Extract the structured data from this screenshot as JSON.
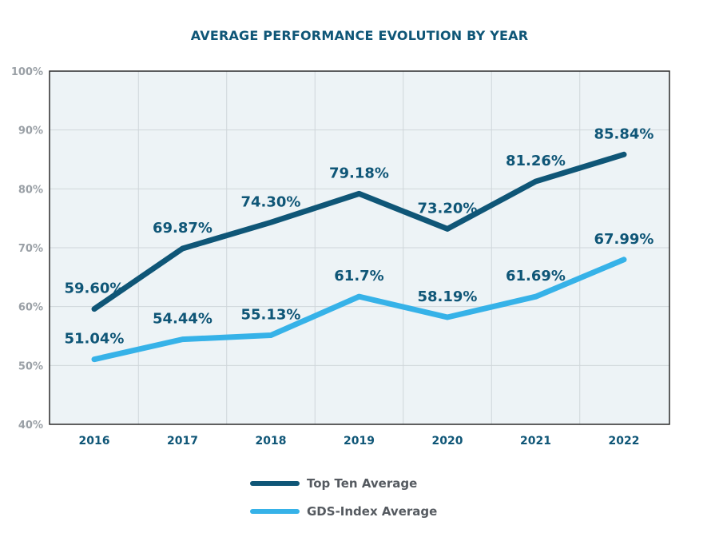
{
  "chart_data": {
    "type": "line",
    "title": "AVERAGE PERFORMANCE EVOLUTION BY YEAR",
    "categories": [
      "2016",
      "2017",
      "2018",
      "2019",
      "2020",
      "2021",
      "2022"
    ],
    "ylim": [
      40,
      100
    ],
    "yticks": [
      40,
      50,
      60,
      70,
      80,
      90,
      100
    ],
    "ytick_labels": [
      "40%",
      "50%",
      "60%",
      "70%",
      "80%",
      "90%",
      "100%"
    ],
    "grid": true,
    "legend_placement": "bottom",
    "series": [
      {
        "name": "Top Ten Average",
        "color": "#0f5677",
        "values": [
          59.6,
          69.87,
          74.3,
          79.18,
          73.2,
          81.26,
          85.84
        ],
        "labels": [
          "59.60%",
          "69.87%",
          "74.30%",
          "79.18%",
          "73.20%",
          "81.26%",
          "85.84%"
        ]
      },
      {
        "name": "GDS-Index Average",
        "color": "#36b2e8",
        "values": [
          51.04,
          54.44,
          55.13,
          61.7,
          58.19,
          61.69,
          67.99
        ],
        "labels": [
          "51.04%",
          "54.44%",
          "55.13%",
          "61.7%",
          "58.19%",
          "61.69%",
          "67.99%"
        ]
      }
    ],
    "colors": {
      "title": "#0f5677",
      "tick_x": "#0f5677",
      "tick_y": "#9aa0a6",
      "plot_bg": "#edf3f6",
      "grid": "#cfd6da"
    }
  }
}
